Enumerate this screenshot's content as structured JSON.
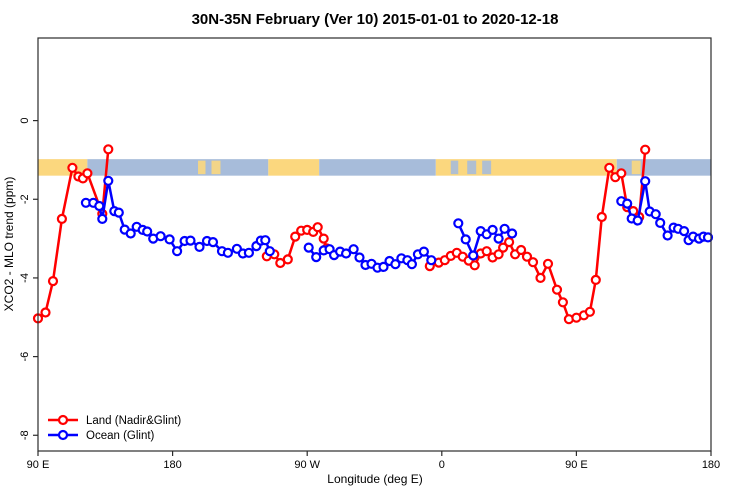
{
  "chart_data": {
    "type": "line",
    "title": "30N-35N February (Ver 10)   2015-01-01 to 2020-12-18",
    "xlabel": "Longitude (deg E)",
    "ylabel": "XCO2 - MLO trend (ppm)",
    "xlim": [
      90,
      540
    ],
    "ylim": [
      -8.4,
      2.1
    ],
    "grid": false,
    "x_ticks": [
      {
        "value": 90,
        "label": "90 E"
      },
      {
        "value": 180,
        "label": "180"
      },
      {
        "value": 270,
        "label": "90 W"
      },
      {
        "value": 360,
        "label": "0"
      },
      {
        "value": 450,
        "label": "90 E"
      },
      {
        "value": 540,
        "label": "180"
      }
    ],
    "y_ticks": [
      {
        "value": 0,
        "label": "0"
      },
      {
        "value": -2,
        "label": "-2"
      },
      {
        "value": -4,
        "label": "-4"
      },
      {
        "value": -6,
        "label": "-6"
      },
      {
        "value": -8,
        "label": "-8"
      }
    ],
    "map_band": {
      "v_top": -0.98,
      "v_bottom": -1.4,
      "land_color": "#fbd77e",
      "ocean_color": "#a7bcda",
      "segments": [
        {
          "from": 90,
          "to": 123,
          "type": "land"
        },
        {
          "from": 123,
          "to": 244,
          "type": "ocean"
        },
        {
          "from": 197,
          "to": 202,
          "type": "land-speckle"
        },
        {
          "from": 206,
          "to": 212,
          "type": "land-speckle"
        },
        {
          "from": 244,
          "to": 278,
          "type": "land"
        },
        {
          "from": 278,
          "to": 356,
          "type": "ocean"
        },
        {
          "from": 356,
          "to": 477,
          "type": "land"
        },
        {
          "from": 366,
          "to": 371,
          "type": "ocean-speckle"
        },
        {
          "from": 377,
          "to": 383,
          "type": "ocean-speckle"
        },
        {
          "from": 387,
          "to": 393,
          "type": "ocean-speckle"
        },
        {
          "from": 477,
          "to": 540,
          "type": "ocean"
        },
        {
          "from": 487,
          "to": 493,
          "type": "land-speckle"
        }
      ]
    },
    "legend": {
      "position": "bottom-left",
      "entries": [
        {
          "label": "Land (Nadir&Glint)",
          "color": "#ff0000"
        },
        {
          "label": "Ocean (Glint)",
          "color": "#0000ff"
        }
      ]
    },
    "series": [
      {
        "name": "Land (Nadir&Glint)",
        "color": "#ff0000",
        "runs": [
          [
            [
              90,
              -5.03
            ],
            [
              95,
              -4.88
            ],
            [
              100,
              -4.08
            ],
            [
              106,
              -2.5
            ],
            [
              113,
              -1.2
            ],
            [
              117,
              -1.42
            ],
            [
              120,
              -1.47
            ],
            [
              123,
              -1.34
            ],
            [
              133,
              -2.37
            ],
            [
              137,
              -0.73
            ]
          ],
          [
            [
              243,
              -3.45
            ],
            [
              248,
              -3.4
            ],
            [
              252,
              -3.62
            ],
            [
              257,
              -3.53
            ],
            [
              262,
              -2.95
            ],
            [
              266,
              -2.8
            ],
            [
              270,
              -2.78
            ],
            [
              274,
              -2.83
            ],
            [
              277,
              -2.71
            ],
            [
              281,
              -3.0
            ],
            [
              283,
              -3.25
            ]
          ],
          [
            [
              352,
              -3.7
            ],
            [
              358,
              -3.61
            ],
            [
              362,
              -3.55
            ],
            [
              366,
              -3.44
            ],
            [
              370,
              -3.36
            ],
            [
              374,
              -3.46
            ],
            [
              378,
              -3.56
            ],
            [
              382,
              -3.68
            ],
            [
              386,
              -3.38
            ],
            [
              390,
              -3.32
            ],
            [
              394,
              -3.48
            ],
            [
              398,
              -3.4
            ],
            [
              401,
              -3.23
            ],
            [
              405,
              -3.09
            ],
            [
              409,
              -3.4
            ],
            [
              413,
              -3.29
            ],
            [
              417,
              -3.46
            ],
            [
              421,
              -3.6
            ],
            [
              426,
              -4.0
            ],
            [
              431,
              -3.64
            ],
            [
              437,
              -4.3
            ],
            [
              441,
              -4.62
            ],
            [
              445,
              -5.05
            ],
            [
              450,
              -5.01
            ],
            [
              455,
              -4.95
            ],
            [
              459,
              -4.86
            ],
            [
              463,
              -4.05
            ],
            [
              467,
              -2.45
            ],
            [
              472,
              -1.2
            ],
            [
              476,
              -1.44
            ],
            [
              480,
              -1.34
            ],
            [
              484,
              -2.2
            ],
            [
              488,
              -2.3
            ],
            [
              492,
              -2.45
            ],
            [
              496,
              -0.74
            ]
          ]
        ]
      },
      {
        "name": "Ocean (Glint)",
        "color": "#0000ff",
        "runs": [
          [
            [
              122,
              -2.09
            ],
            [
              127,
              -2.09
            ],
            [
              131,
              -2.17
            ],
            [
              133,
              -2.5
            ],
            [
              137,
              -1.53
            ],
            [
              141,
              -2.3
            ],
            [
              144,
              -2.34
            ],
            [
              148,
              -2.77
            ],
            [
              152,
              -2.87
            ],
            [
              156,
              -2.7
            ],
            [
              160,
              -2.78
            ],
            [
              163,
              -2.82
            ],
            [
              167,
              -3.0
            ],
            [
              172,
              -2.94
            ],
            [
              178,
              -3.02
            ],
            [
              183,
              -3.32
            ],
            [
              188,
              -3.06
            ],
            [
              192,
              -3.05
            ],
            [
              198,
              -3.21
            ],
            [
              203,
              -3.06
            ],
            [
              207,
              -3.09
            ],
            [
              213,
              -3.32
            ],
            [
              217,
              -3.36
            ],
            [
              223,
              -3.26
            ],
            [
              227,
              -3.38
            ],
            [
              231,
              -3.36
            ],
            [
              236,
              -3.19
            ],
            [
              239,
              -3.05
            ],
            [
              242,
              -3.04
            ],
            [
              245,
              -3.32
            ]
          ],
          [
            [
              271,
              -3.23
            ],
            [
              276,
              -3.47
            ],
            [
              281,
              -3.3
            ],
            [
              285,
              -3.27
            ],
            [
              288,
              -3.42
            ],
            [
              292,
              -3.33
            ],
            [
              296,
              -3.38
            ],
            [
              301,
              -3.27
            ],
            [
              305,
              -3.48
            ],
            [
              309,
              -3.67
            ],
            [
              313,
              -3.64
            ],
            [
              317,
              -3.74
            ],
            [
              321,
              -3.72
            ],
            [
              325,
              -3.57
            ],
            [
              329,
              -3.65
            ],
            [
              333,
              -3.5
            ],
            [
              337,
              -3.55
            ],
            [
              340,
              -3.65
            ],
            [
              344,
              -3.4
            ],
            [
              348,
              -3.33
            ],
            [
              353,
              -3.55
            ]
          ],
          [
            [
              371,
              -2.61
            ],
            [
              376,
              -3.02
            ],
            [
              381,
              -3.43
            ],
            [
              386,
              -2.81
            ],
            [
              390,
              -2.89
            ],
            [
              394,
              -2.78
            ],
            [
              398,
              -3.0
            ],
            [
              402,
              -2.75
            ],
            [
              407,
              -2.87
            ]
          ],
          [
            [
              480,
              -2.05
            ],
            [
              484,
              -2.11
            ],
            [
              487,
              -2.49
            ],
            [
              491,
              -2.54
            ],
            [
              496,
              -1.54
            ],
            [
              499,
              -2.31
            ],
            [
              503,
              -2.38
            ],
            [
              506,
              -2.6
            ],
            [
              511,
              -2.92
            ],
            [
              515,
              -2.72
            ],
            [
              518,
              -2.75
            ],
            [
              522,
              -2.81
            ],
            [
              525,
              -3.04
            ],
            [
              528,
              -2.95
            ],
            [
              532,
              -3.0
            ],
            [
              535,
              -2.95
            ],
            [
              538,
              -2.97
            ]
          ]
        ]
      }
    ]
  }
}
